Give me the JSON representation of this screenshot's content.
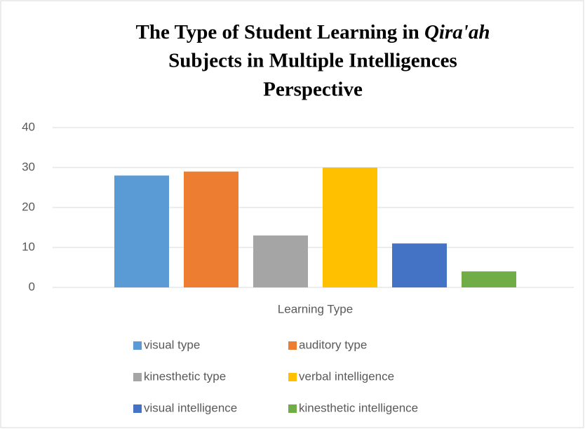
{
  "chart_data": {
    "type": "bar",
    "title": [
      "The Type of Student Learning in ",
      "Qira'ah",
      "Subjects  in Multiple Intelligences",
      "Perspective"
    ],
    "categories": [
      "Learning Type"
    ],
    "series": [
      {
        "name": "visual type",
        "color": "#5b9bd5",
        "values": [
          28
        ]
      },
      {
        "name": "auditory type",
        "color": "#ed7d31",
        "values": [
          29
        ]
      },
      {
        "name": "kinesthetic type",
        "color": "#a5a5a5",
        "values": [
          13
        ]
      },
      {
        "name": "verbal intelligence",
        "color": "#ffc000",
        "values": [
          30
        ]
      },
      {
        "name": "visual intelligence",
        "color": "#4472c4",
        "values": [
          11
        ]
      },
      {
        "name": "kinesthetic intelligence",
        "color": "#70ad47",
        "values": [
          4
        ]
      }
    ],
    "ylim": [
      0,
      40
    ],
    "yticks": [
      0,
      10,
      20,
      30,
      40
    ],
    "grid": true,
    "legend": "bottom"
  }
}
